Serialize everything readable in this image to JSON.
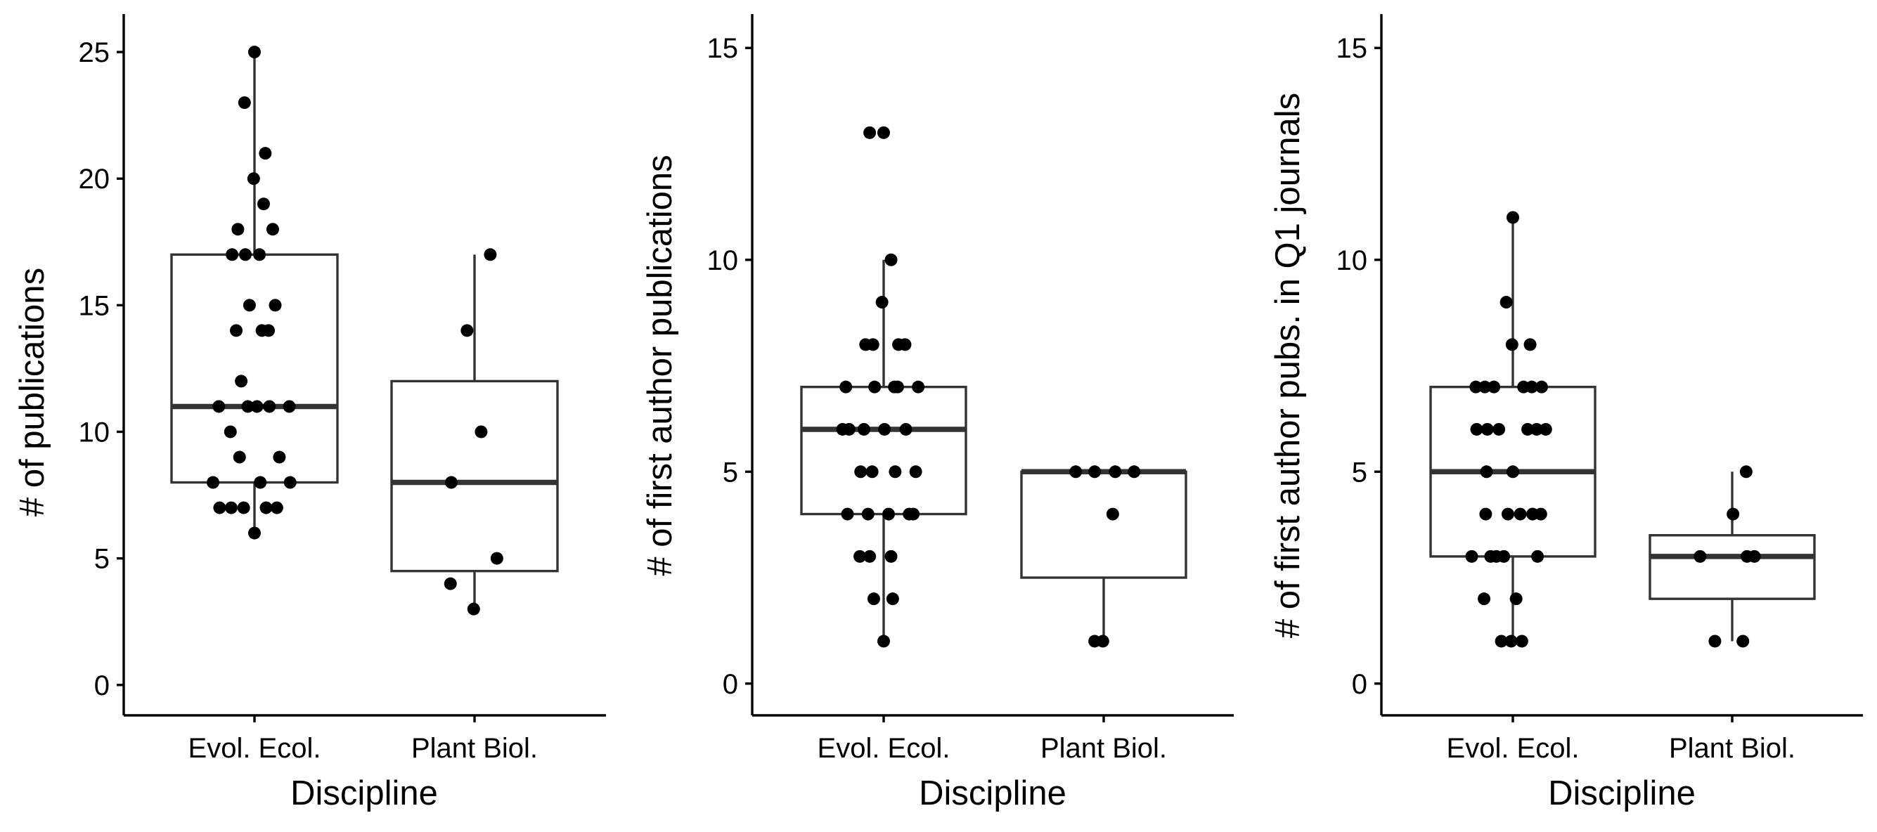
{
  "chart_data": [
    {
      "type": "box",
      "xlabel": "Discipline",
      "ylabel": "# of publications",
      "categories": [
        "Evol. Ecol.",
        "Plant Biol."
      ],
      "ylim": [
        -1.2,
        26.5
      ],
      "yticks": [
        0,
        5,
        10,
        15,
        20,
        25
      ],
      "grid": false,
      "boxes": [
        {
          "category": "Evol. Ecol.",
          "q1": 8,
          "median": 11,
          "q3": 17,
          "whisker_low": 6,
          "whisker_high": 25
        },
        {
          "category": "Plant Biol.",
          "q1": 4.5,
          "median": 8,
          "q3": 12,
          "whisker_low": 3,
          "whisker_high": 17
        }
      ],
      "points": [
        {
          "category": "Evol. Ecol.",
          "offset": 0.0,
          "value": 25
        },
        {
          "category": "Evol. Ecol.",
          "offset": -0.12,
          "value": 23
        },
        {
          "category": "Evol. Ecol.",
          "offset": 0.13,
          "value": 21
        },
        {
          "category": "Evol. Ecol.",
          "offset": -0.01,
          "value": 20
        },
        {
          "category": "Evol. Ecol.",
          "offset": 0.11,
          "value": 19
        },
        {
          "category": "Evol. Ecol.",
          "offset": -0.2,
          "value": 18
        },
        {
          "category": "Evol. Ecol.",
          "offset": 0.22,
          "value": 18
        },
        {
          "category": "Evol. Ecol.",
          "offset": -0.27,
          "value": 17
        },
        {
          "category": "Evol. Ecol.",
          "offset": -0.11,
          "value": 17
        },
        {
          "category": "Evol. Ecol.",
          "offset": 0.06,
          "value": 17
        },
        {
          "category": "Evol. Ecol.",
          "offset": -0.06,
          "value": 15
        },
        {
          "category": "Evol. Ecol.",
          "offset": 0.25,
          "value": 15
        },
        {
          "category": "Evol. Ecol.",
          "offset": -0.22,
          "value": 14
        },
        {
          "category": "Evol. Ecol.",
          "offset": 0.09,
          "value": 14
        },
        {
          "category": "Evol. Ecol.",
          "offset": 0.17,
          "value": 14
        },
        {
          "category": "Evol. Ecol.",
          "offset": -0.16,
          "value": 12
        },
        {
          "category": "Evol. Ecol.",
          "offset": -0.43,
          "value": 11
        },
        {
          "category": "Evol. Ecol.",
          "offset": -0.08,
          "value": 11
        },
        {
          "category": "Evol. Ecol.",
          "offset": 0.03,
          "value": 11
        },
        {
          "category": "Evol. Ecol.",
          "offset": 0.18,
          "value": 11
        },
        {
          "category": "Evol. Ecol.",
          "offset": 0.42,
          "value": 11
        },
        {
          "category": "Evol. Ecol.",
          "offset": -0.29,
          "value": 10
        },
        {
          "category": "Evol. Ecol.",
          "offset": -0.18,
          "value": 9
        },
        {
          "category": "Evol. Ecol.",
          "offset": 0.3,
          "value": 9
        },
        {
          "category": "Evol. Ecol.",
          "offset": -0.5,
          "value": 8
        },
        {
          "category": "Evol. Ecol.",
          "offset": 0.07,
          "value": 8
        },
        {
          "category": "Evol. Ecol.",
          "offset": 0.43,
          "value": 8
        },
        {
          "category": "Evol. Ecol.",
          "offset": -0.42,
          "value": 7
        },
        {
          "category": "Evol. Ecol.",
          "offset": -0.28,
          "value": 7
        },
        {
          "category": "Evol. Ecol.",
          "offset": -0.13,
          "value": 7
        },
        {
          "category": "Evol. Ecol.",
          "offset": 0.14,
          "value": 7
        },
        {
          "category": "Evol. Ecol.",
          "offset": 0.27,
          "value": 7
        },
        {
          "category": "Evol. Ecol.",
          "offset": -0.0,
          "value": 6
        },
        {
          "category": "Plant Biol.",
          "offset": 0.19,
          "value": 17
        },
        {
          "category": "Plant Biol.",
          "offset": -0.09,
          "value": 14
        },
        {
          "category": "Plant Biol.",
          "offset": 0.08,
          "value": 10
        },
        {
          "category": "Plant Biol.",
          "offset": -0.28,
          "value": 8
        },
        {
          "category": "Plant Biol.",
          "offset": 0.27,
          "value": 5
        },
        {
          "category": "Plant Biol.",
          "offset": -0.29,
          "value": 4
        },
        {
          "category": "Plant Biol.",
          "offset": -0.01,
          "value": 3
        }
      ]
    },
    {
      "type": "box",
      "xlabel": "Discipline",
      "ylabel": "# of first author publications",
      "categories": [
        "Evol. Ecol.",
        "Plant Biol."
      ],
      "ylim": [
        -0.75,
        15.8
      ],
      "yticks": [
        0,
        5,
        10,
        15
      ],
      "grid": false,
      "boxes": [
        {
          "category": "Evol. Ecol.",
          "q1": 4,
          "median": 6,
          "q3": 7,
          "whisker_low": 1,
          "whisker_high": 10
        },
        {
          "category": "Plant Biol.",
          "q1": 2.5,
          "median": 5,
          "q3": 5,
          "whisker_low": 1,
          "whisker_high": 5
        }
      ],
      "points": [
        {
          "category": "Evol. Ecol.",
          "offset": -0.17,
          "value": 13
        },
        {
          "category": "Evol. Ecol.",
          "offset": 0.0,
          "value": 13
        },
        {
          "category": "Evol. Ecol.",
          "offset": 0.09,
          "value": 10
        },
        {
          "category": "Evol. Ecol.",
          "offset": -0.02,
          "value": 9
        },
        {
          "category": "Evol. Ecol.",
          "offset": -0.22,
          "value": 8
        },
        {
          "category": "Evol. Ecol.",
          "offset": -0.13,
          "value": 8
        },
        {
          "category": "Evol. Ecol.",
          "offset": 0.18,
          "value": 8
        },
        {
          "category": "Evol. Ecol.",
          "offset": 0.26,
          "value": 8
        },
        {
          "category": "Evol. Ecol.",
          "offset": -0.46,
          "value": 7
        },
        {
          "category": "Evol. Ecol.",
          "offset": -0.11,
          "value": 7
        },
        {
          "category": "Evol. Ecol.",
          "offset": 0.13,
          "value": 7
        },
        {
          "category": "Evol. Ecol.",
          "offset": 0.17,
          "value": 7
        },
        {
          "category": "Evol. Ecol.",
          "offset": 0.42,
          "value": 7
        },
        {
          "category": "Evol. Ecol.",
          "offset": -0.5,
          "value": 6
        },
        {
          "category": "Evol. Ecol.",
          "offset": -0.42,
          "value": 6
        },
        {
          "category": "Evol. Ecol.",
          "offset": -0.24,
          "value": 6
        },
        {
          "category": "Evol. Ecol.",
          "offset": 0.01,
          "value": 6
        },
        {
          "category": "Evol. Ecol.",
          "offset": 0.27,
          "value": 6
        },
        {
          "category": "Evol. Ecol.",
          "offset": -0.28,
          "value": 5
        },
        {
          "category": "Evol. Ecol.",
          "offset": -0.14,
          "value": 5
        },
        {
          "category": "Evol. Ecol.",
          "offset": 0.14,
          "value": 5
        },
        {
          "category": "Evol. Ecol.",
          "offset": 0.39,
          "value": 5
        },
        {
          "category": "Evol. Ecol.",
          "offset": -0.44,
          "value": 4
        },
        {
          "category": "Evol. Ecol.",
          "offset": -0.19,
          "value": 4
        },
        {
          "category": "Evol. Ecol.",
          "offset": 0.06,
          "value": 4
        },
        {
          "category": "Evol. Ecol.",
          "offset": 0.31,
          "value": 4
        },
        {
          "category": "Evol. Ecol.",
          "offset": 0.36,
          "value": 4
        },
        {
          "category": "Evol. Ecol.",
          "offset": -0.29,
          "value": 3
        },
        {
          "category": "Evol. Ecol.",
          "offset": -0.17,
          "value": 3
        },
        {
          "category": "Evol. Ecol.",
          "offset": 0.09,
          "value": 3
        },
        {
          "category": "Evol. Ecol.",
          "offset": -0.12,
          "value": 2
        },
        {
          "category": "Evol. Ecol.",
          "offset": 0.11,
          "value": 2
        },
        {
          "category": "Evol. Ecol.",
          "offset": -0.0,
          "value": 1
        },
        {
          "category": "Plant Biol.",
          "offset": -0.34,
          "value": 5
        },
        {
          "category": "Plant Biol.",
          "offset": -0.11,
          "value": 5
        },
        {
          "category": "Plant Biol.",
          "offset": 0.14,
          "value": 5
        },
        {
          "category": "Plant Biol.",
          "offset": 0.37,
          "value": 5
        },
        {
          "category": "Plant Biol.",
          "offset": 0.11,
          "value": 4
        },
        {
          "category": "Plant Biol.",
          "offset": -0.11,
          "value": 1
        },
        {
          "category": "Plant Biol.",
          "offset": -0.01,
          "value": 1
        }
      ]
    },
    {
      "type": "box",
      "xlabel": "Discipline",
      "ylabel": "# of first author pubs. in Q1 journals",
      "categories": [
        "Evol. Ecol.",
        "Plant Biol."
      ],
      "ylim": [
        -0.75,
        15.8
      ],
      "yticks": [
        0,
        5,
        10,
        15
      ],
      "grid": false,
      "boxes": [
        {
          "category": "Evol. Ecol.",
          "q1": 3,
          "median": 5,
          "q3": 7,
          "whisker_low": 1,
          "whisker_high": 11
        },
        {
          "category": "Plant Biol.",
          "q1": 2,
          "median": 3,
          "q3": 3.5,
          "whisker_low": 1,
          "whisker_high": 5
        }
      ],
      "points": [
        {
          "category": "Evol. Ecol.",
          "offset": 0.0,
          "value": 11
        },
        {
          "category": "Evol. Ecol.",
          "offset": -0.08,
          "value": 9
        },
        {
          "category": "Evol. Ecol.",
          "offset": -0.01,
          "value": 8
        },
        {
          "category": "Evol. Ecol.",
          "offset": 0.21,
          "value": 8
        },
        {
          "category": "Evol. Ecol.",
          "offset": -0.45,
          "value": 7
        },
        {
          "category": "Evol. Ecol.",
          "offset": -0.34,
          "value": 7
        },
        {
          "category": "Evol. Ecol.",
          "offset": -0.23,
          "value": 7
        },
        {
          "category": "Evol. Ecol.",
          "offset": 0.13,
          "value": 7
        },
        {
          "category": "Evol. Ecol.",
          "offset": 0.23,
          "value": 7
        },
        {
          "category": "Evol. Ecol.",
          "offset": 0.35,
          "value": 7
        },
        {
          "category": "Evol. Ecol.",
          "offset": -0.44,
          "value": 6
        },
        {
          "category": "Evol. Ecol.",
          "offset": -0.31,
          "value": 6
        },
        {
          "category": "Evol. Ecol.",
          "offset": -0.17,
          "value": 6
        },
        {
          "category": "Evol. Ecol.",
          "offset": 0.18,
          "value": 6
        },
        {
          "category": "Evol. Ecol.",
          "offset": 0.29,
          "value": 6
        },
        {
          "category": "Evol. Ecol.",
          "offset": 0.4,
          "value": 6
        },
        {
          "category": "Evol. Ecol.",
          "offset": -0.32,
          "value": 5
        },
        {
          "category": "Evol. Ecol.",
          "offset": 0.0,
          "value": 5
        },
        {
          "category": "Evol. Ecol.",
          "offset": -0.33,
          "value": 4
        },
        {
          "category": "Evol. Ecol.",
          "offset": -0.06,
          "value": 4
        },
        {
          "category": "Evol. Ecol.",
          "offset": 0.09,
          "value": 4
        },
        {
          "category": "Evol. Ecol.",
          "offset": 0.24,
          "value": 4
        },
        {
          "category": "Evol. Ecol.",
          "offset": 0.34,
          "value": 4
        },
        {
          "category": "Evol. Ecol.",
          "offset": -0.5,
          "value": 3
        },
        {
          "category": "Evol. Ecol.",
          "offset": -0.27,
          "value": 3
        },
        {
          "category": "Evol. Ecol.",
          "offset": -0.2,
          "value": 3
        },
        {
          "category": "Evol. Ecol.",
          "offset": -0.11,
          "value": 3
        },
        {
          "category": "Evol. Ecol.",
          "offset": 0.3,
          "value": 3
        },
        {
          "category": "Evol. Ecol.",
          "offset": -0.35,
          "value": 2
        },
        {
          "category": "Evol. Ecol.",
          "offset": 0.04,
          "value": 2
        },
        {
          "category": "Evol. Ecol.",
          "offset": -0.14,
          "value": 1
        },
        {
          "category": "Evol. Ecol.",
          "offset": -0.02,
          "value": 1
        },
        {
          "category": "Evol. Ecol.",
          "offset": 0.11,
          "value": 1
        },
        {
          "category": "Plant Biol.",
          "offset": 0.17,
          "value": 5
        },
        {
          "category": "Plant Biol.",
          "offset": 0.01,
          "value": 4
        },
        {
          "category": "Plant Biol.",
          "offset": -0.39,
          "value": 3
        },
        {
          "category": "Plant Biol.",
          "offset": 0.18,
          "value": 3
        },
        {
          "category": "Plant Biol.",
          "offset": 0.27,
          "value": 3
        },
        {
          "category": "Plant Biol.",
          "offset": -0.21,
          "value": 1
        },
        {
          "category": "Plant Biol.",
          "offset": 0.13,
          "value": 1
        }
      ]
    }
  ]
}
